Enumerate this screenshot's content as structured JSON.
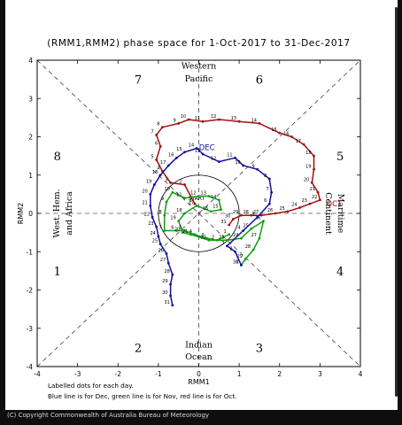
{
  "chart_data": {
    "type": "line",
    "title": "(RMM1,RMM2) phase space for   1-Oct-2017 to 31-Dec-2017",
    "xlabel": "RMM1",
    "ylabel": "RMM2",
    "xlim": [
      -4,
      4
    ],
    "ylim": [
      -4,
      4
    ],
    "x_ticks": [
      "-4",
      "-3",
      "-2",
      "-1",
      "0",
      "1",
      "2",
      "3",
      "4"
    ],
    "y_ticks": [
      "-4",
      "-3",
      "-2",
      "-1",
      "0",
      "1",
      "2",
      "3",
      "4"
    ],
    "phase_numbers": [
      {
        "label": "1",
        "x": -3.5,
        "y": -1.5
      },
      {
        "label": "2",
        "x": -1.5,
        "y": -3.5
      },
      {
        "label": "3",
        "x": 1.5,
        "y": -3.5
      },
      {
        "label": "4",
        "x": 3.5,
        "y": -1.5
      },
      {
        "label": "5",
        "x": 3.5,
        "y": 1.5
      },
      {
        "label": "6",
        "x": 1.5,
        "y": 3.5
      },
      {
        "label": "7",
        "x": -1.5,
        "y": 3.5
      },
      {
        "label": "8",
        "x": -3.5,
        "y": 1.5
      }
    ],
    "region_labels": {
      "top": [
        "Western",
        "Pacific"
      ],
      "bottom": [
        "Indian",
        "Ocean"
      ],
      "left": [
        "West. Hem.",
        "and Africa"
      ],
      "right": [
        "Maritime",
        "Continent"
      ]
    },
    "start_label": "START",
    "series": [
      {
        "name": "Oct",
        "color": "#a01010",
        "end_label": "OCT",
        "points": [
          {
            "day": 1,
            "x": -0.1,
            "y": 0.25
          },
          {
            "day": 2,
            "x": -0.35,
            "y": 0.75
          },
          {
            "day": 3,
            "x": -0.7,
            "y": 0.8
          },
          {
            "day": 4,
            "x": -0.9,
            "y": 1.1
          },
          {
            "day": 5,
            "x": -1.05,
            "y": 1.4
          },
          {
            "day": 6,
            "x": -0.95,
            "y": 1.75
          },
          {
            "day": 7,
            "x": -1.05,
            "y": 2.05
          },
          {
            "day": 8,
            "x": -0.9,
            "y": 2.25
          },
          {
            "day": 9,
            "x": -0.5,
            "y": 2.35
          },
          {
            "day": 10,
            "x": -0.25,
            "y": 2.45
          },
          {
            "day": 11,
            "x": 0.1,
            "y": 2.4
          },
          {
            "day": 12,
            "x": 0.5,
            "y": 2.45
          },
          {
            "day": 13,
            "x": 1.0,
            "y": 2.4
          },
          {
            "day": 14,
            "x": 1.5,
            "y": 2.35
          },
          {
            "day": 15,
            "x": 2.0,
            "y": 2.1
          },
          {
            "day": 16,
            "x": 2.3,
            "y": 2.0
          },
          {
            "day": 17,
            "x": 2.6,
            "y": 1.8
          },
          {
            "day": 18,
            "x": 2.85,
            "y": 1.5
          },
          {
            "day": 19,
            "x": 2.85,
            "y": 1.15
          },
          {
            "day": 20,
            "x": 2.8,
            "y": 0.8
          },
          {
            "day": 21,
            "x": 2.95,
            "y": 0.55
          },
          {
            "day": 22,
            "x": 3.0,
            "y": 0.35
          },
          {
            "day": 23,
            "x": 2.75,
            "y": 0.25
          },
          {
            "day": 24,
            "x": 2.5,
            "y": 0.15
          },
          {
            "day": 25,
            "x": 2.2,
            "y": 0.05
          },
          {
            "day": 26,
            "x": 1.9,
            "y": 0.0
          },
          {
            "day": 27,
            "x": 1.55,
            "y": -0.05
          },
          {
            "day": 28,
            "x": 1.3,
            "y": -0.05
          },
          {
            "day": 29,
            "x": 1.05,
            "y": -0.05
          },
          {
            "day": 30,
            "x": 0.85,
            "y": -0.15
          },
          {
            "day": 31,
            "x": 0.75,
            "y": -0.3
          }
        ]
      },
      {
        "name": "Nov",
        "color": "#10a010",
        "points": [
          {
            "day": 1,
            "x": 0.75,
            "y": -0.55
          },
          {
            "day": 2,
            "x": 0.45,
            "y": -0.7
          },
          {
            "day": 3,
            "x": 0.2,
            "y": -0.65
          },
          {
            "day": 4,
            "x": -0.1,
            "y": -0.55
          },
          {
            "day": 5,
            "x": -0.35,
            "y": -0.45
          },
          {
            "day": 6,
            "x": -0.55,
            "y": -0.45
          },
          {
            "day": 7,
            "x": -0.85,
            "y": -0.45
          },
          {
            "day": 8,
            "x": -0.85,
            "y": -0.05
          },
          {
            "day": 9,
            "x": -0.8,
            "y": 0.3
          },
          {
            "day": 10,
            "x": -0.65,
            "y": 0.55
          },
          {
            "day": 11,
            "x": -0.35,
            "y": 0.4
          },
          {
            "day": 12,
            "x": 0.0,
            "y": 0.45
          },
          {
            "day": 13,
            "x": 0.25,
            "y": 0.45
          },
          {
            "day": 14,
            "x": 0.5,
            "y": 0.35
          },
          {
            "day": 15,
            "x": 0.55,
            "y": 0.1
          },
          {
            "day": 16,
            "x": 0.3,
            "y": 0.05
          },
          {
            "day": 17,
            "x": -0.05,
            "y": 0.2
          },
          {
            "day": 18,
            "x": -0.35,
            "y": 0.0
          },
          {
            "day": 19,
            "x": -0.5,
            "y": -0.2
          },
          {
            "day": 20,
            "x": -0.4,
            "y": -0.5
          },
          {
            "day": 21,
            "x": -0.2,
            "y": -0.55
          },
          {
            "day": 22,
            "x": 0.25,
            "y": -0.7
          },
          {
            "day": 23,
            "x": 0.7,
            "y": -0.7
          },
          {
            "day": 24,
            "x": 1.05,
            "y": -0.65
          },
          {
            "day": 25,
            "x": 1.3,
            "y": -0.4
          },
          {
            "day": 26,
            "x": 1.6,
            "y": -0.2
          },
          {
            "day": 27,
            "x": 1.5,
            "y": -0.65
          },
          {
            "day": 28,
            "x": 1.35,
            "y": -0.95
          },
          {
            "day": 29,
            "x": 1.15,
            "y": -1.2
          },
          {
            "day": 30,
            "x": 1.05,
            "y": -1.35
          }
        ]
      },
      {
        "name": "Dec",
        "color": "#1010a0",
        "end_label": "DEC",
        "points": [
          {
            "day": 1,
            "x": 1.05,
            "y": -1.35
          },
          {
            "day": 2,
            "x": 0.9,
            "y": -1.0
          },
          {
            "day": 3,
            "x": 0.7,
            "y": -0.85
          },
          {
            "day": 4,
            "x": 1.1,
            "y": -0.45
          },
          {
            "day": 5,
            "x": 1.45,
            "y": -0.1
          },
          {
            "day": 6,
            "x": 1.75,
            "y": 0.25
          },
          {
            "day": 7,
            "x": 1.8,
            "y": 0.55
          },
          {
            "day": 8,
            "x": 1.75,
            "y": 0.9
          },
          {
            "day": 9,
            "x": 1.45,
            "y": 1.15
          },
          {
            "day": 10,
            "x": 1.1,
            "y": 1.25
          },
          {
            "day": 11,
            "x": 0.9,
            "y": 1.45
          },
          {
            "day": 12,
            "x": 0.5,
            "y": 1.35
          },
          {
            "day": 13,
            "x": 0.1,
            "y": 1.55
          },
          {
            "day": 14,
            "x": -0.05,
            "y": 1.7
          },
          {
            "day": 15,
            "x": -0.35,
            "y": 1.6
          },
          {
            "day": 16,
            "x": -0.55,
            "y": 1.45
          },
          {
            "day": 17,
            "x": -0.75,
            "y": 1.25
          },
          {
            "day": 18,
            "x": -0.95,
            "y": 1.0
          },
          {
            "day": 19,
            "x": -1.1,
            "y": 0.75
          },
          {
            "day": 20,
            "x": -1.2,
            "y": 0.5
          },
          {
            "day": 21,
            "x": -1.2,
            "y": 0.2
          },
          {
            "day": 22,
            "x": -1.15,
            "y": -0.1
          },
          {
            "day": 23,
            "x": -1.05,
            "y": -0.35
          },
          {
            "day": 24,
            "x": -1.0,
            "y": -0.6
          },
          {
            "day": 25,
            "x": -0.95,
            "y": -0.8
          },
          {
            "day": 26,
            "x": -0.8,
            "y": -1.05
          },
          {
            "day": 27,
            "x": -0.75,
            "y": -1.3
          },
          {
            "day": 28,
            "x": -0.65,
            "y": -1.6
          },
          {
            "day": 29,
            "x": -0.7,
            "y": -1.85
          },
          {
            "day": 30,
            "x": -0.7,
            "y": -2.15
          },
          {
            "day": 31,
            "x": -0.65,
            "y": -2.4
          }
        ]
      }
    ]
  },
  "footer": {
    "line1": "Labelled dots for each day.",
    "line2": "Blue line is for Dec, green line is for Nov, red line is for Oct.",
    "copyright": "(C) Copyright Commonwealth of Australia Bureau of Meteorology"
  }
}
